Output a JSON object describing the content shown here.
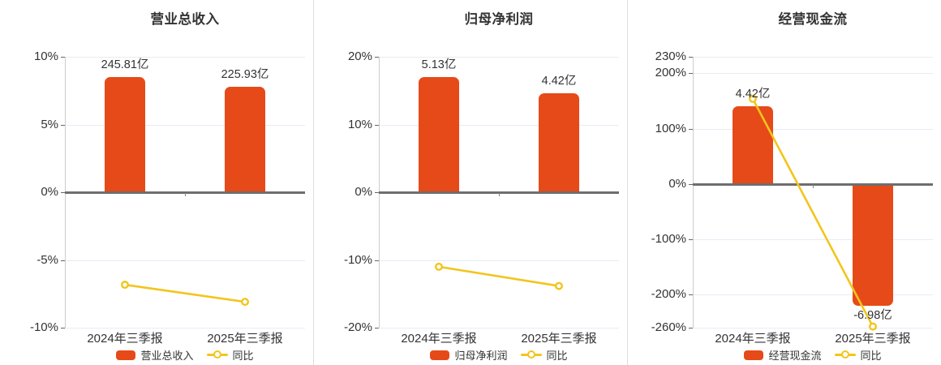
{
  "colors": {
    "bar": "#e64a19",
    "line": "#f2c51c",
    "marker_fill": "#ffffff",
    "grid": "#e7ebf4",
    "zero_line": "#6e6e6e",
    "axis": "#cccccc",
    "text": "#333333",
    "panel_separator": "#dddddd"
  },
  "chart_data": [
    {
      "type": "bar+line",
      "title": "营业总收入",
      "categories": [
        "2024年三季报",
        "2025年三季报"
      ],
      "unit": "亿",
      "bar_series": {
        "name": "营业总收入",
        "values_yi": [
          245.81,
          225.93
        ],
        "value_labels": [
          "245.81亿",
          "225.93亿"
        ],
        "axis_heights_pct": [
          8.5,
          7.81
        ],
        "label_positions": [
          "above",
          "above"
        ]
      },
      "line_series": {
        "name": "同比",
        "values_pct": [
          -6.83,
          -8.09
        ]
      },
      "y_axis": {
        "min": -10,
        "max": 10,
        "ticks": [
          10,
          5,
          0,
          -5,
          -10
        ],
        "tick_labels": [
          "10%",
          "5%",
          "0%",
          "-5%",
          "-10%"
        ]
      },
      "grid": true,
      "legend_position": "bottom"
    },
    {
      "type": "bar+line",
      "title": "归母净利润",
      "categories": [
        "2024年三季报",
        "2025年三季报"
      ],
      "unit": "亿",
      "bar_series": {
        "name": "归母净利润",
        "values_yi": [
          5.13,
          4.42
        ],
        "value_labels": [
          "5.13亿",
          "4.42亿"
        ],
        "axis_heights_pct": [
          17.0,
          14.65
        ],
        "label_positions": [
          "above",
          "above"
        ]
      },
      "line_series": {
        "name": "同比",
        "values_pct": [
          -11.0,
          -13.84
        ]
      },
      "y_axis": {
        "min": -20,
        "max": 20,
        "ticks": [
          20,
          10,
          0,
          -10,
          -20
        ],
        "tick_labels": [
          "20%",
          "10%",
          "0%",
          "-10%",
          "-20%"
        ]
      },
      "grid": true,
      "legend_position": "bottom"
    },
    {
      "type": "bar+line",
      "title": "经营现金流",
      "categories": [
        "2024年三季报",
        "2025年三季报"
      ],
      "unit": "亿",
      "bar_series": {
        "name": "经营现金流",
        "values_yi": [
          4.42,
          -6.98
        ],
        "value_labels": [
          "4.42亿",
          "-6.98亿"
        ],
        "axis_heights_pct": [
          140,
          -221
        ],
        "label_positions": [
          "above",
          "below"
        ]
      },
      "line_series": {
        "name": "同比",
        "values_pct": [
          154,
          -257.9
        ]
      },
      "y_axis": {
        "min": -260,
        "max": 230,
        "ticks": [
          230,
          200,
          100,
          0,
          -100,
          -200,
          -260
        ],
        "tick_labels": [
          "230%",
          "200%",
          "100%",
          "0%",
          "-100%",
          "-200%",
          "-260%"
        ]
      },
      "grid": true,
      "legend_position": "bottom"
    }
  ]
}
